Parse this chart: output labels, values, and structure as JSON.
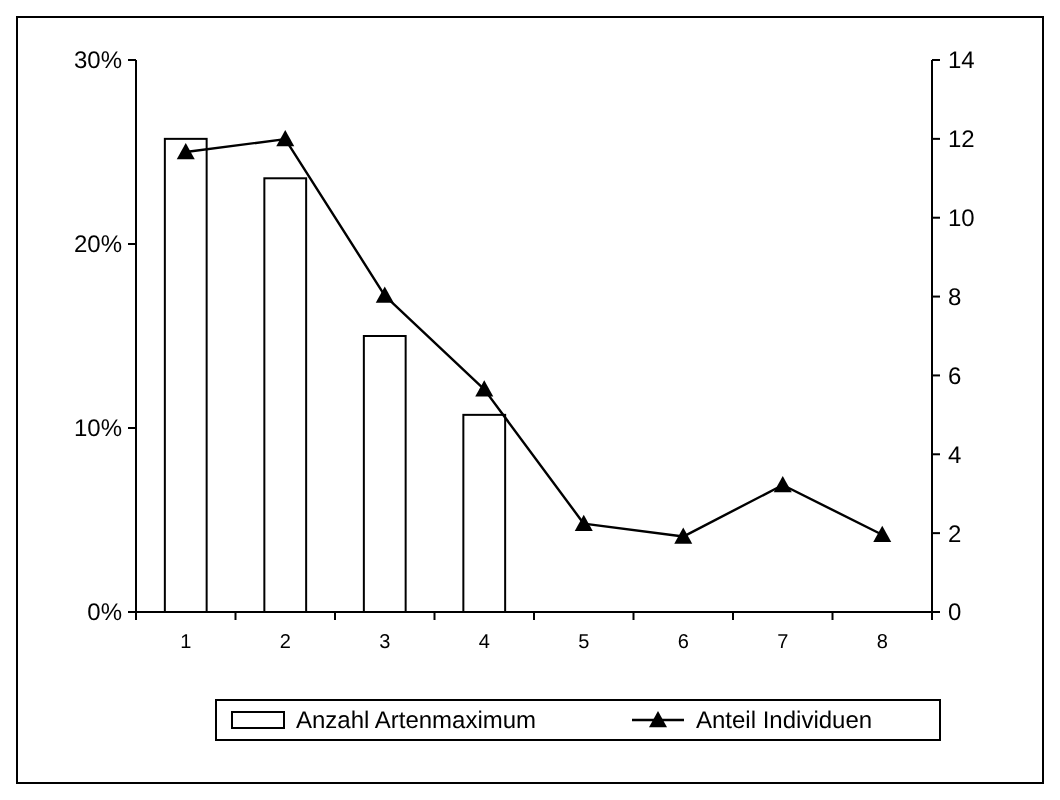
{
  "chart_data": {
    "type": "bar",
    "categories": [
      "1",
      "2",
      "3",
      "4",
      "5",
      "6",
      "7",
      "8"
    ],
    "series": [
      {
        "name": "Anzahl Artenmaximum",
        "axis": "y2",
        "color": "#ffffff",
        "values": [
          12,
          11,
          7,
          5,
          null,
          null,
          null,
          null
        ]
      },
      {
        "name": "Anteil Individuen",
        "type": "line",
        "axis": "y",
        "color": "#000000",
        "values": [
          25.0,
          25.7,
          17.2,
          12.1,
          4.8,
          4.1,
          6.9,
          4.2
        ]
      }
    ],
    "ylim": [
      0,
      30
    ],
    "yticks": [
      {
        "value": 0,
        "label": "0%"
      },
      {
        "value": 10,
        "label": "10%"
      },
      {
        "value": 20,
        "label": "20%"
      },
      {
        "value": 30,
        "label": "30%"
      }
    ],
    "y2lim": [
      0,
      14
    ],
    "y2ticks": [
      0,
      2,
      4,
      6,
      8,
      10,
      12,
      14
    ],
    "marker": "triangle",
    "line_style": "solid",
    "legend": "bottom",
    "grid": false
  }
}
